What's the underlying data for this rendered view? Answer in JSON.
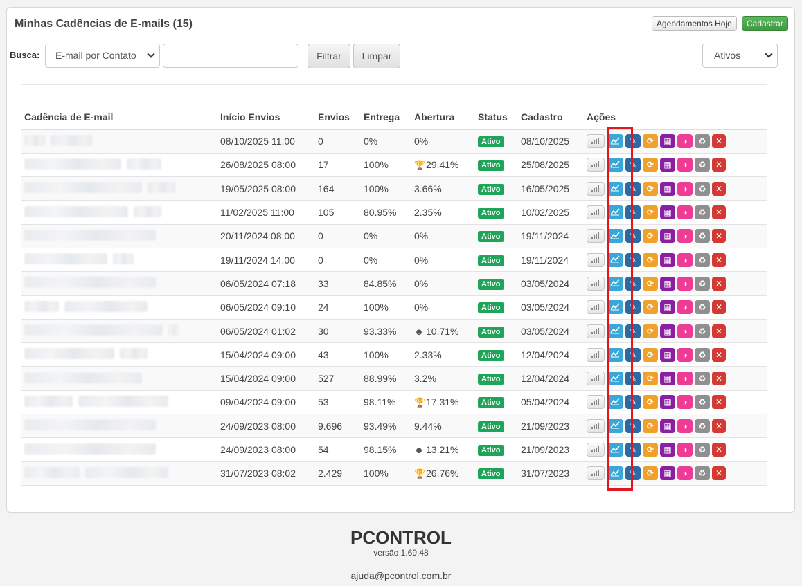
{
  "header": {
    "title": "Minhas Cadências de E-mails (15)",
    "btn_today": "Agendamentos Hoje",
    "btn_new": "Cadastrar"
  },
  "search": {
    "label": "Busca:",
    "type_value": "E-mail por Contato",
    "filter": "Filtrar",
    "clear": "Limpar",
    "status_value": "Ativos"
  },
  "table": {
    "headers": [
      "Cadência de E-mail",
      "Início Envios",
      "Envios",
      "Entrega",
      "Abertura",
      "Status",
      "Cadastro",
      "Ações"
    ],
    "rows": [
      {
        "inicio": "08/10/2025 11:00",
        "envios": "0",
        "entrega": "0%",
        "abertura": "0%",
        "abertura_icon": "",
        "status": "Ativo",
        "cadastro": "08/10/2025"
      },
      {
        "inicio": "26/08/2025 08:00",
        "envios": "17",
        "entrega": "100%",
        "abertura": "29.41%",
        "abertura_icon": "trophy-icon",
        "status": "Ativo",
        "cadastro": "25/08/2025"
      },
      {
        "inicio": "19/05/2025 08:00",
        "envios": "164",
        "entrega": "100%",
        "abertura": "3.66%",
        "abertura_icon": "",
        "status": "Ativo",
        "cadastro": "16/05/2025"
      },
      {
        "inicio": "11/02/2025 11:00",
        "envios": "105",
        "entrega": "80.95%",
        "abertura": "2.35%",
        "abertura_icon": "",
        "status": "Ativo",
        "cadastro": "10/02/2025"
      },
      {
        "inicio": "20/11/2024 08:00",
        "envios": "0",
        "entrega": "0%",
        "abertura": "0%",
        "abertura_icon": "",
        "status": "Ativo",
        "cadastro": "19/11/2024"
      },
      {
        "inicio": "19/11/2024 14:00",
        "envios": "0",
        "entrega": "0%",
        "abertura": "0%",
        "abertura_icon": "",
        "status": "Ativo",
        "cadastro": "19/11/2024"
      },
      {
        "inicio": "06/05/2024 07:18",
        "envios": "33",
        "entrega": "84.85%",
        "abertura": "0%",
        "abertura_icon": "",
        "status": "Ativo",
        "cadastro": "03/05/2024"
      },
      {
        "inicio": "06/05/2024 09:10",
        "envios": "24",
        "entrega": "100%",
        "abertura": "0%",
        "abertura_icon": "",
        "status": "Ativo",
        "cadastro": "03/05/2024"
      },
      {
        "inicio": "06/05/2024 01:02",
        "envios": "30",
        "entrega": "93.33%",
        "abertura": "10.71%",
        "abertura_icon": "smile-icon",
        "status": "Ativo",
        "cadastro": "03/05/2024"
      },
      {
        "inicio": "15/04/2024 09:00",
        "envios": "43",
        "entrega": "100%",
        "abertura": "2.33%",
        "abertura_icon": "",
        "status": "Ativo",
        "cadastro": "12/04/2024"
      },
      {
        "inicio": "15/04/2024 09:00",
        "envios": "527",
        "entrega": "88.99%",
        "abertura": "3.2%",
        "abertura_icon": "",
        "status": "Ativo",
        "cadastro": "12/04/2024"
      },
      {
        "inicio": "09/04/2024 09:00",
        "envios": "53",
        "entrega": "98.11%",
        "abertura": "17.31%",
        "abertura_icon": "trophy-icon",
        "status": "Ativo",
        "cadastro": "05/04/2024"
      },
      {
        "inicio": "24/09/2023 08:00",
        "envios": "9.696",
        "entrega": "93.49%",
        "abertura": "9.44%",
        "abertura_icon": "",
        "status": "Ativo",
        "cadastro": "21/09/2023"
      },
      {
        "inicio": "24/09/2023 08:00",
        "envios": "54",
        "entrega": "98.15%",
        "abertura": "13.21%",
        "abertura_icon": "smile-icon",
        "status": "Ativo",
        "cadastro": "21/09/2023"
      },
      {
        "inicio": "31/07/2023 08:02",
        "envios": "2.429",
        "entrega": "100%",
        "abertura": "26.76%",
        "abertura_icon": "trophy-icon",
        "status": "Ativo",
        "cadastro": "31/07/2023"
      }
    ],
    "actions": [
      "signal-icon",
      "chart-icon",
      "edit-icon",
      "sync-icon",
      "calendar-icon",
      "half-circle-icon",
      "recycle-icon",
      "close-icon"
    ]
  },
  "footer": {
    "logo": "PCONTROL",
    "version": "versão 1.69.48",
    "email": "ajuda@pcontrol.com.br"
  },
  "colors": {
    "status_badge": "#1fa55a",
    "btn_new": "#5cb85c",
    "highlight": "#e2161f",
    "chart_button": "#39a8d9"
  }
}
